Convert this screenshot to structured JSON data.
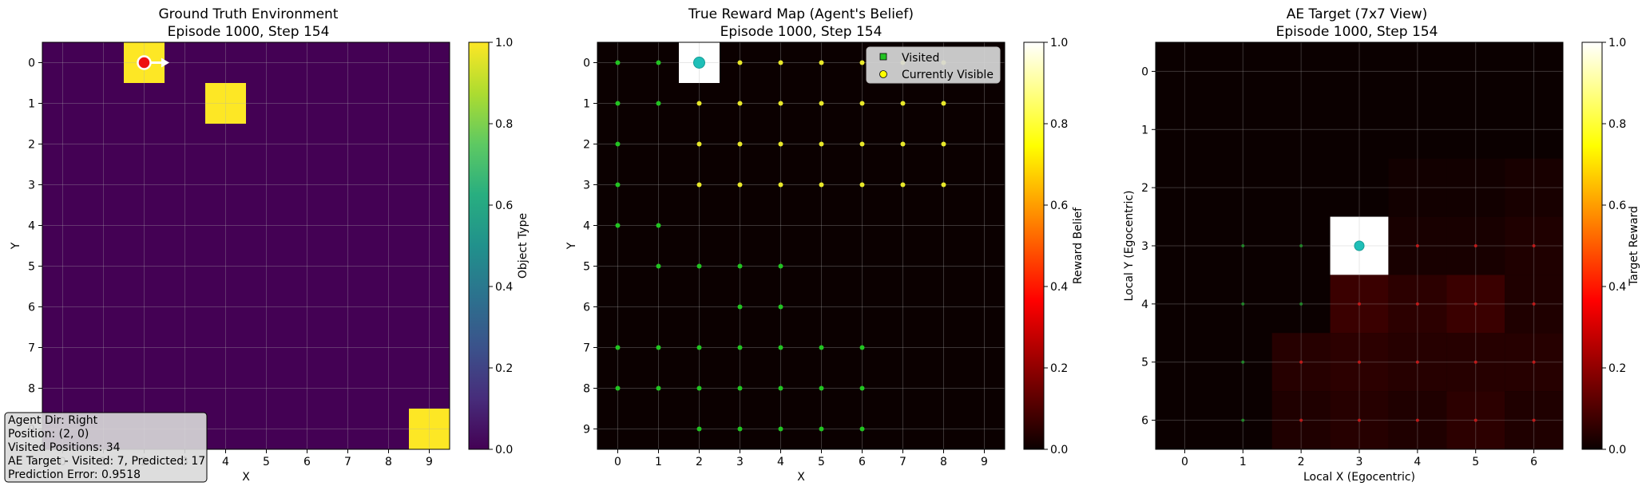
{
  "chart_data": [
    {
      "type": "heatmap",
      "title": "Ground Truth Environment",
      "subtitle": "Episode 1000, Step 154",
      "xlabel": "X",
      "ylabel": "Y",
      "x_ticks": [
        "0",
        "1",
        "2",
        "3",
        "4",
        "5",
        "6",
        "7",
        "8",
        "9"
      ],
      "y_ticks": [
        "0",
        "1",
        "2",
        "3",
        "4",
        "5",
        "6",
        "7",
        "8",
        "9"
      ],
      "colormap": "viridis",
      "colorbar_label": "Object Type",
      "colorbar_ticks": [
        "0.0",
        "0.2",
        "0.4",
        "0.6",
        "0.8",
        "1.0"
      ],
      "clim": [
        0,
        1
      ],
      "grid": true,
      "cells": [
        {
          "x": 2,
          "y": 0,
          "value": 1.0
        },
        {
          "x": 4,
          "y": 1,
          "value": 1.0
        },
        {
          "x": 9,
          "y": 9,
          "value": 1.0
        }
      ],
      "agent": {
        "x": 2,
        "y": 0,
        "dir": "right"
      },
      "info_lines": [
        "Agent Dir: Right",
        "Position: (2, 0)",
        "Visited Positions: 34",
        "AE Target - Visited: 7, Predicted: 17",
        "Prediction Error: 0.9518"
      ]
    },
    {
      "type": "heatmap",
      "title": "True Reward Map (Agent's Belief)",
      "subtitle": "Episode 1000, Step 154",
      "xlabel": "X",
      "ylabel": "Y",
      "x_ticks": [
        "0",
        "1",
        "2",
        "3",
        "4",
        "5",
        "6",
        "7",
        "8",
        "9"
      ],
      "y_ticks": [
        "0",
        "1",
        "2",
        "3",
        "4",
        "5",
        "6",
        "7",
        "8",
        "9"
      ],
      "colormap": "hot",
      "colorbar_label": "Reward Belief",
      "colorbar_ticks": [
        "0.0",
        "0.2",
        "0.4",
        "0.6",
        "0.8",
        "1.0"
      ],
      "clim": [
        0,
        1
      ],
      "grid": true,
      "cells": [
        {
          "x": 2,
          "y": 0,
          "value": 1.0
        }
      ],
      "agent": {
        "x": 2,
        "y": 0
      },
      "legend": {
        "position": "top-right",
        "entries": [
          "Visited",
          "Currently Visible"
        ]
      },
      "visited_points": [
        [
          0,
          0
        ],
        [
          1,
          0
        ],
        [
          0,
          1
        ],
        [
          1,
          1
        ],
        [
          0,
          2
        ],
        [
          0,
          3
        ],
        [
          0,
          4
        ],
        [
          1,
          4
        ],
        [
          1,
          5
        ],
        [
          2,
          5
        ],
        [
          3,
          5
        ],
        [
          4,
          5
        ],
        [
          3,
          6
        ],
        [
          4,
          6
        ],
        [
          0,
          7
        ],
        [
          1,
          7
        ],
        [
          2,
          7
        ],
        [
          3,
          7
        ],
        [
          4,
          7
        ],
        [
          5,
          7
        ],
        [
          6,
          7
        ],
        [
          0,
          8
        ],
        [
          1,
          8
        ],
        [
          2,
          8
        ],
        [
          3,
          8
        ],
        [
          4,
          8
        ],
        [
          5,
          8
        ],
        [
          6,
          8
        ],
        [
          2,
          9
        ],
        [
          3,
          9
        ],
        [
          4,
          9
        ],
        [
          5,
          9
        ],
        [
          6,
          9
        ]
      ],
      "visible_points": [
        [
          3,
          0
        ],
        [
          4,
          0
        ],
        [
          5,
          0
        ],
        [
          6,
          0
        ],
        [
          7,
          0
        ],
        [
          8,
          0
        ],
        [
          2,
          1
        ],
        [
          3,
          1
        ],
        [
          4,
          1
        ],
        [
          5,
          1
        ],
        [
          6,
          1
        ],
        [
          7,
          1
        ],
        [
          8,
          1
        ],
        [
          2,
          2
        ],
        [
          3,
          2
        ],
        [
          4,
          2
        ],
        [
          5,
          2
        ],
        [
          6,
          2
        ],
        [
          7,
          2
        ],
        [
          8,
          2
        ],
        [
          2,
          3
        ],
        [
          3,
          3
        ],
        [
          4,
          3
        ],
        [
          5,
          3
        ],
        [
          6,
          3
        ],
        [
          7,
          3
        ],
        [
          8,
          3
        ]
      ]
    },
    {
      "type": "heatmap",
      "title": "AE Target (7x7 View)",
      "subtitle": "Episode 1000, Step 154",
      "xlabel": "Local X (Egocentric)",
      "ylabel": "Local Y (Egocentric)",
      "x_ticks": [
        "0",
        "1",
        "2",
        "3",
        "4",
        "5",
        "6"
      ],
      "y_ticks": [
        "0",
        "1",
        "2",
        "3",
        "4",
        "5",
        "6"
      ],
      "colormap": "hot",
      "colorbar_label": "Target Reward",
      "colorbar_ticks": [
        "0.0",
        "0.2",
        "0.4",
        "0.6",
        "0.8",
        "1.0"
      ],
      "clim": [
        0,
        1
      ],
      "grid": true,
      "cells": [
        {
          "x": 3,
          "y": 3,
          "value": 1.0
        },
        {
          "x": 3,
          "y": 4,
          "value": 0.07
        },
        {
          "x": 4,
          "y": 4,
          "value": 0.05
        },
        {
          "x": 5,
          "y": 4,
          "value": 0.07
        },
        {
          "x": 6,
          "y": 4,
          "value": 0.03
        },
        {
          "x": 2,
          "y": 5,
          "value": 0.04
        },
        {
          "x": 3,
          "y": 5,
          "value": 0.05
        },
        {
          "x": 4,
          "y": 5,
          "value": 0.04
        },
        {
          "x": 5,
          "y": 5,
          "value": 0.04
        },
        {
          "x": 6,
          "y": 5,
          "value": 0.04
        },
        {
          "x": 2,
          "y": 6,
          "value": 0.03
        },
        {
          "x": 3,
          "y": 6,
          "value": 0.04
        },
        {
          "x": 4,
          "y": 6,
          "value": 0.03
        },
        {
          "x": 5,
          "y": 6,
          "value": 0.05
        },
        {
          "x": 6,
          "y": 6,
          "value": 0.03
        },
        {
          "x": 4,
          "y": 3,
          "value": 0.02
        },
        {
          "x": 5,
          "y": 3,
          "value": 0.02
        },
        {
          "x": 6,
          "y": 3,
          "value": 0.03
        },
        {
          "x": 4,
          "y": 2,
          "value": 0.01
        },
        {
          "x": 5,
          "y": 2,
          "value": 0.01
        },
        {
          "x": 6,
          "y": 2,
          "value": 0.02
        }
      ],
      "agent": {
        "x": 3,
        "y": 3
      },
      "green_points": [
        [
          1,
          3
        ],
        [
          2,
          3
        ],
        [
          1,
          4
        ],
        [
          2,
          4
        ],
        [
          1,
          5
        ],
        [
          1,
          6
        ]
      ],
      "red_points": [
        [
          4,
          3
        ],
        [
          5,
          3
        ],
        [
          6,
          3
        ],
        [
          3,
          4
        ],
        [
          4,
          4
        ],
        [
          5,
          4
        ],
        [
          6,
          4
        ],
        [
          2,
          5
        ],
        [
          3,
          5
        ],
        [
          4,
          5
        ],
        [
          5,
          5
        ],
        [
          6,
          5
        ],
        [
          2,
          6
        ],
        [
          3,
          6
        ],
        [
          4,
          6
        ],
        [
          5,
          6
        ],
        [
          6,
          6
        ]
      ]
    }
  ]
}
